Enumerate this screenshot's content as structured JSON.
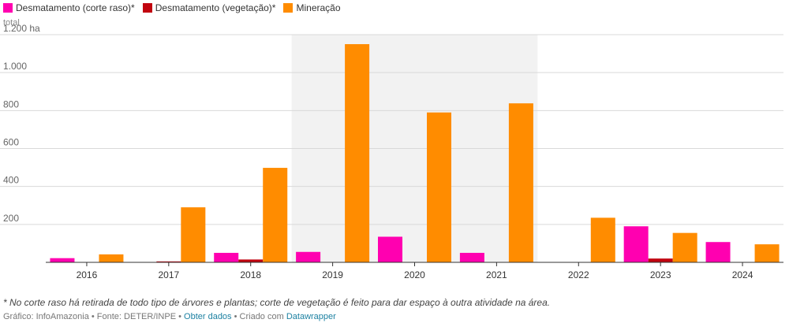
{
  "legend": [
    {
      "label": "Desmatamento (corte raso)*",
      "color": "#ff00b0"
    },
    {
      "label": "Desmatamento (vegetação)*",
      "color": "#c1040f"
    },
    {
      "label": "Mineração",
      "color": "#ff8c00"
    }
  ],
  "axis_unit_label": "total",
  "footnote": "* No corte raso há retirada de todo tipo de árvores e plantas; corte de vegetação é feito para dar espaço à outra atividade na área.",
  "credits": {
    "prefix": "Gráfico: InfoAmazonia • Fonte: DETER/INPE • ",
    "get_data": "Obter dados",
    "middle": " • Criado com ",
    "tool": "Datawrapper"
  },
  "chart_data": {
    "type": "bar",
    "categories": [
      "2016",
      "2017",
      "2018",
      "2019",
      "2020",
      "2021",
      "2022",
      "2023",
      "2024"
    ],
    "series": [
      {
        "name": "Desmatamento (corte raso)*",
        "color": "#ff00b0",
        "values": [
          22,
          0,
          50,
          55,
          135,
          50,
          0,
          190,
          107
        ]
      },
      {
        "name": "Desmatamento (vegetação)*",
        "color": "#c1040f",
        "values": [
          0,
          5,
          15,
          0,
          0,
          0,
          0,
          20,
          0
        ]
      },
      {
        "name": "Mineração",
        "color": "#ff8c00",
        "values": [
          42,
          290,
          498,
          1150,
          790,
          838,
          235,
          155,
          95
        ]
      }
    ],
    "yticks": [
      {
        "value": 200,
        "label": "200"
      },
      {
        "value": 400,
        "label": "400"
      },
      {
        "value": 600,
        "label": "600"
      },
      {
        "value": 800,
        "label": "800"
      },
      {
        "value": 1000,
        "label": "1.000"
      },
      {
        "value": 1200,
        "label": "1.200 ha"
      }
    ],
    "ylim": [
      0,
      1200
    ],
    "highlight_range": [
      "2019",
      "2021"
    ],
    "grid": true
  }
}
